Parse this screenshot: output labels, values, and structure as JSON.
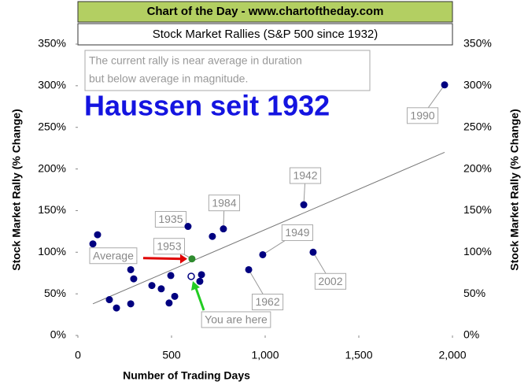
{
  "chart_data": {
    "type": "scatter",
    "header": "Chart of the Day - www.chartoftheday.com",
    "title": "Stock Market Rallies (S&P 500 since 1932)",
    "x_label": "Number of Trading Days",
    "y_label": "Stock Market Rally (% Change)",
    "note": [
      "The current rally is near average in duration",
      "but below average in magnitude."
    ],
    "overlay_text": "Haussen seit 1932",
    "color": "#000080",
    "x": [
      80,
      105,
      168,
      206,
      282,
      282,
      298,
      395,
      445,
      487,
      496,
      517,
      588,
      651,
      660,
      718,
      777,
      912,
      987,
      1206,
      1256,
      1958
    ],
    "values": [
      110,
      121,
      43,
      33,
      38,
      79,
      68,
      60,
      56,
      39,
      72,
      47,
      131,
      65,
      73,
      119,
      128,
      79,
      97,
      157,
      100,
      301
    ],
    "point_labels": [
      null,
      null,
      null,
      null,
      null,
      null,
      null,
      null,
      null,
      null,
      null,
      null,
      "1935",
      null,
      null,
      null,
      "1984",
      "1962",
      "1949",
      "1942",
      "2002",
      "1990"
    ],
    "average": {
      "x": 609,
      "y": 92,
      "label": "Average",
      "year": "1953",
      "color": "#2e8b2e"
    },
    "current": {
      "x": 605,
      "y": 71,
      "label": "You are here"
    },
    "trendline": {
      "x": [
        80,
        1958
      ],
      "values": [
        38,
        220
      ]
    },
    "xlim": [
      0,
      2000
    ],
    "xticks": [
      0,
      500,
      {
        "value": 1000,
        "label": "1,000"
      },
      {
        "value": 1500,
        "label": "1,500"
      },
      {
        "value": 2000,
        "label": "2,000"
      }
    ],
    "ylim": [
      0,
      350
    ],
    "yticks": [
      {
        "value": 0,
        "label": "0%"
      },
      {
        "value": 50,
        "label": "50%"
      },
      {
        "value": 100,
        "label": "100%"
      },
      {
        "value": 150,
        "label": "150%"
      },
      {
        "value": 200,
        "label": "200%"
      },
      {
        "value": 250,
        "label": "250%"
      },
      {
        "value": 300,
        "label": "300%"
      },
      {
        "value": 350,
        "label": "350%"
      }
    ]
  }
}
